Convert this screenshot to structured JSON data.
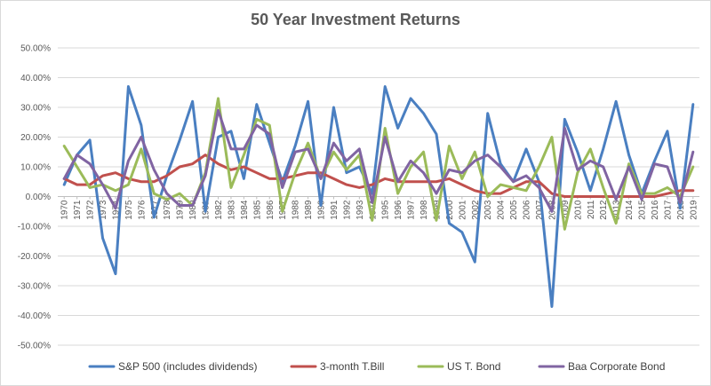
{
  "chart_data": {
    "type": "line",
    "title": "50 Year Investment Returns",
    "xlabel": "",
    "ylabel": "",
    "ylim": [
      -0.5,
      0.5
    ],
    "yticks": [
      "50.00%",
      "40.00%",
      "30.00%",
      "20.00%",
      "10.00%",
      "0.00%",
      "-10.00%",
      "-20.00%",
      "-30.00%",
      "-40.00%",
      "-50.00%"
    ],
    "grid": true,
    "legend_position": "bottom",
    "x": [
      "1970",
      "1971",
      "1972",
      "1973",
      "1974",
      "1975",
      "1976",
      "1977",
      "1978",
      "1979",
      "1980",
      "1981",
      "1982",
      "1983",
      "1984",
      "1985",
      "1986",
      "1987",
      "1988",
      "1989",
      "1990",
      "1991",
      "1992",
      "1993",
      "1994",
      "1995",
      "1996",
      "1997",
      "1998",
      "1999",
      "2000",
      "2001",
      "2002",
      "2003",
      "2004",
      "2005",
      "2006",
      "2007",
      "2008",
      "2009",
      "2010",
      "2011",
      "2012",
      "2013",
      "2014",
      "2015",
      "2016",
      "2017",
      "2018",
      "2019"
    ],
    "series": [
      {
        "name": "S&P 500 (includes dividends)",
        "color": "#4a7fc1",
        "values": [
          0.04,
          0.14,
          0.19,
          -0.14,
          -0.26,
          0.37,
          0.24,
          -0.07,
          0.07,
          0.19,
          0.32,
          -0.05,
          0.2,
          0.22,
          0.06,
          0.31,
          0.18,
          0.05,
          0.17,
          0.32,
          -0.03,
          0.3,
          0.08,
          0.1,
          0.01,
          0.37,
          0.23,
          0.33,
          0.28,
          0.21,
          -0.09,
          -0.12,
          -0.22,
          0.28,
          0.11,
          0.05,
          0.16,
          0.05,
          -0.37,
          0.26,
          0.15,
          0.02,
          0.16,
          0.32,
          0.14,
          0.01,
          0.12,
          0.22,
          -0.04,
          0.31
        ]
      },
      {
        "name": "3-month T.Bill",
        "color": "#c0504d",
        "values": [
          0.06,
          0.04,
          0.04,
          0.07,
          0.08,
          0.06,
          0.05,
          0.05,
          0.07,
          0.1,
          0.11,
          0.14,
          0.11,
          0.09,
          0.1,
          0.08,
          0.06,
          0.06,
          0.07,
          0.08,
          0.08,
          0.06,
          0.04,
          0.03,
          0.04,
          0.06,
          0.05,
          0.05,
          0.05,
          0.05,
          0.06,
          0.04,
          0.02,
          0.01,
          0.01,
          0.03,
          0.05,
          0.05,
          0.01,
          0.0,
          0.0,
          0.0,
          0.0,
          0.0,
          0.0,
          0.0,
          0.0,
          0.01,
          0.02,
          0.02
        ]
      },
      {
        "name": "US T. Bond",
        "color": "#9bbb59",
        "values": [
          0.17,
          0.1,
          0.03,
          0.04,
          0.02,
          0.04,
          0.16,
          0.01,
          -0.01,
          0.01,
          -0.03,
          0.08,
          0.33,
          0.03,
          0.14,
          0.26,
          0.24,
          -0.05,
          0.08,
          0.18,
          0.06,
          0.15,
          0.09,
          0.14,
          -0.08,
          0.23,
          0.01,
          0.1,
          0.15,
          -0.08,
          0.17,
          0.06,
          0.15,
          0.0,
          0.04,
          0.03,
          0.02,
          0.1,
          0.2,
          -0.11,
          0.08,
          0.16,
          0.03,
          -0.09,
          0.11,
          0.01,
          0.01,
          0.03,
          0.0,
          0.1
        ]
      },
      {
        "name": "Baa Corporate Bond",
        "color": "#8064a2",
        "values": [
          0.06,
          0.14,
          0.11,
          0.04,
          -0.04,
          0.12,
          0.2,
          0.09,
          0.01,
          -0.03,
          -0.03,
          0.07,
          0.29,
          0.16,
          0.16,
          0.24,
          0.21,
          0.03,
          0.15,
          0.16,
          0.06,
          0.18,
          0.12,
          0.16,
          -0.02,
          0.2,
          0.05,
          0.12,
          0.08,
          0.01,
          0.09,
          0.08,
          0.12,
          0.14,
          0.1,
          0.05,
          0.07,
          0.03,
          -0.05,
          0.23,
          0.09,
          0.12,
          0.1,
          -0.01,
          0.1,
          -0.01,
          0.11,
          0.1,
          -0.02,
          0.15
        ]
      }
    ]
  }
}
